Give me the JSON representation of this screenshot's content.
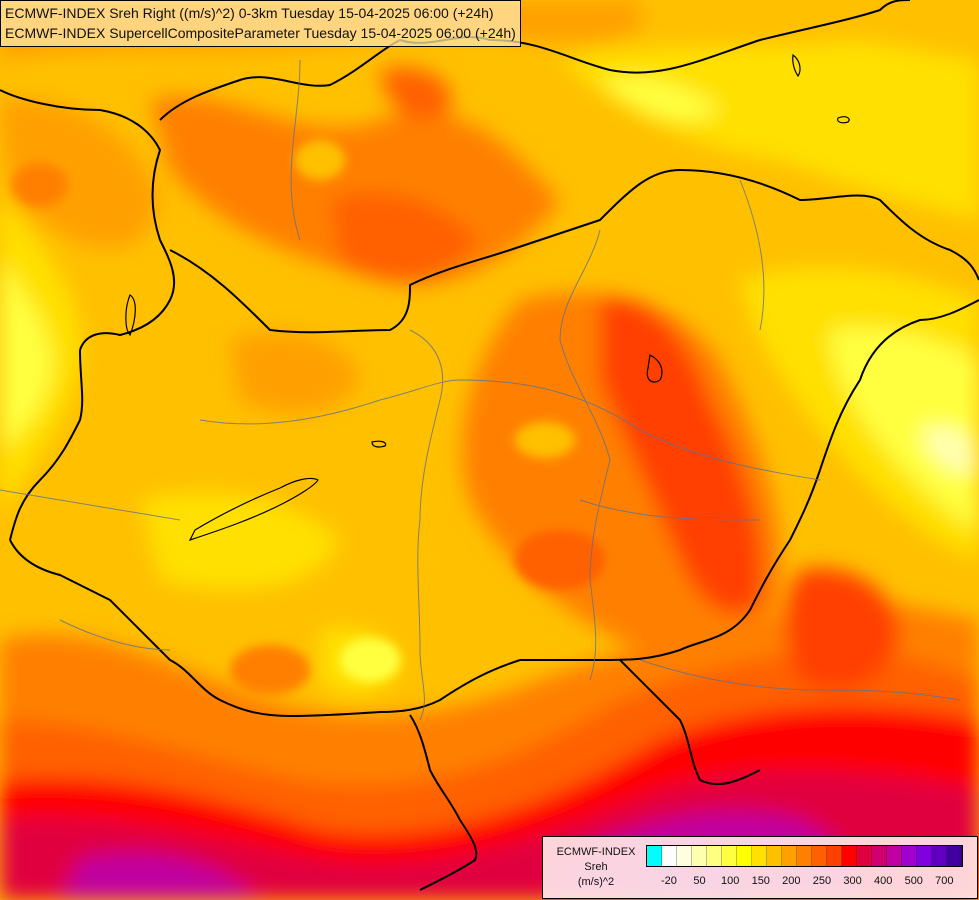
{
  "header": {
    "line1": "ECMWF-INDEX Sreh Right ((m/s)^2) 0-3km Tuesday 15-04-2025 06:00 (+24h)",
    "line2": "ECMWF-INDEX SupercellCompositeParameter Tuesday 15-04-2025 06:00 (+24h)"
  },
  "legend": {
    "title": "ECMWF-INDEX\nSreh\n(m/s)^2",
    "colors": [
      "#00ffff",
      "#ffffff",
      "#ffffe0",
      "#ffffb0",
      "#ffff80",
      "#ffff40",
      "#ffff00",
      "#ffe000",
      "#ffc000",
      "#ffa000",
      "#ff8000",
      "#ff6000",
      "#ff4000",
      "#ff0000",
      "#e00040",
      "#d00070",
      "#c000a0",
      "#a000d0",
      "#8000e0",
      "#6000c0",
      "#4000a0"
    ],
    "ticks": [
      {
        "label": "-20",
        "index": 1
      },
      {
        "label": "50",
        "index": 3
      },
      {
        "label": "100",
        "index": 5
      },
      {
        "label": "150",
        "index": 7
      },
      {
        "label": "200",
        "index": 9
      },
      {
        "label": "250",
        "index": 11
      },
      {
        "label": "300",
        "index": 13
      },
      {
        "label": "400",
        "index": 15
      },
      {
        "label": "500",
        "index": 17
      },
      {
        "label": "700",
        "index": 19
      }
    ]
  },
  "field_colors": {
    "yellow_light": "#ffff40",
    "yellow": "#ffe000",
    "gold": "#ffc000",
    "orange": "#ffa000",
    "dark_orange": "#ff8000",
    "red_orange": "#ff6000",
    "red": "#ff4000",
    "crimson": "#e00040",
    "magenta": "#c000a0",
    "purple": "#a000d0"
  }
}
